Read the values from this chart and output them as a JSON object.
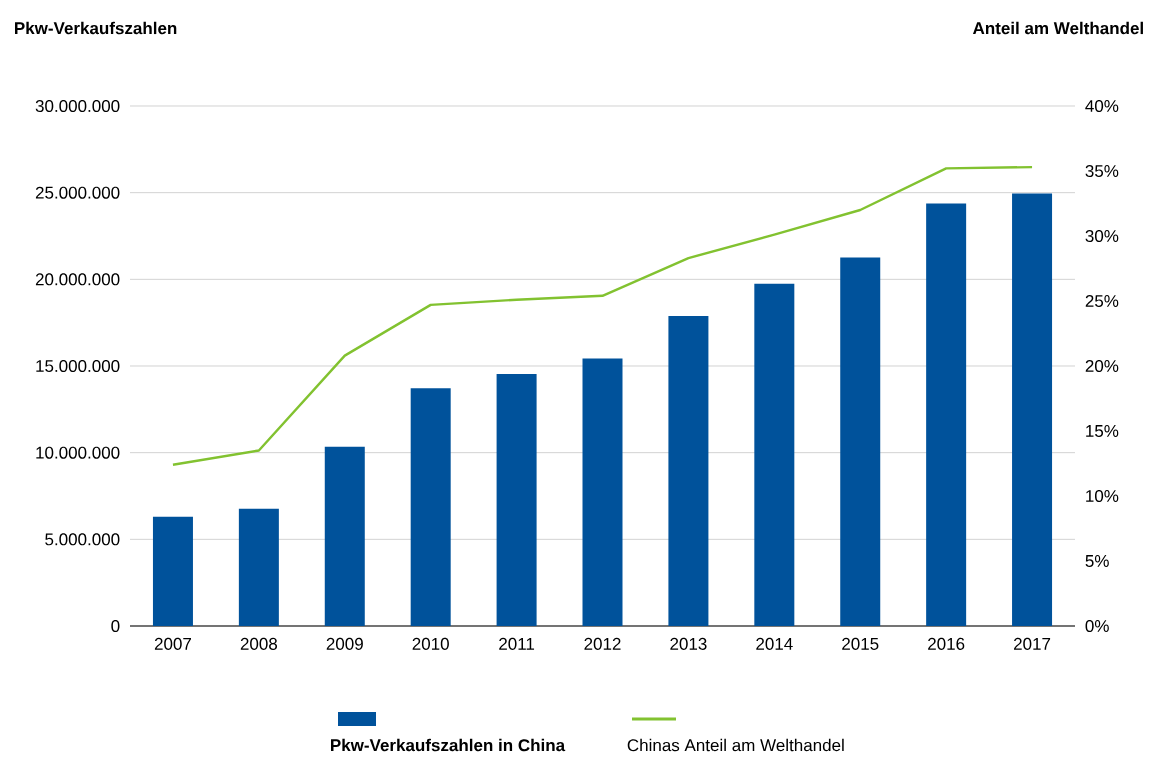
{
  "chart_data": {
    "type": "bar",
    "ylabel": "Pkw-Verkaufszahlen",
    "y2label": "Anteil am Welthandel",
    "categories": [
      "2007",
      "2008",
      "2009",
      "2010",
      "2011",
      "2012",
      "2013",
      "2014",
      "2015",
      "2016",
      "2017"
    ],
    "series": [
      {
        "name": "Pkw-Verkaufszahlen in China",
        "color": "#00529b",
        "values": [
          6300000,
          6760000,
          10340000,
          13720000,
          14540000,
          15430000,
          17880000,
          19740000,
          21260000,
          24370000,
          24950000
        ]
      },
      {
        "name": "Chinas Anteil am Welthandel",
        "type": "line",
        "axis": "y2",
        "color": "#82c230",
        "values": [
          12.4,
          13.5,
          20.8,
          24.7,
          25.1,
          25.4,
          28.3,
          30.1,
          32.0,
          35.2,
          35.3
        ]
      }
    ],
    "ylim": [
      0,
      30000000
    ],
    "yticks": [
      {
        "value": 0,
        "label": "0"
      },
      {
        "value": 5000000,
        "label": "5.000.000"
      },
      {
        "value": 10000000,
        "label": "10.000.000"
      },
      {
        "value": 15000000,
        "label": "15.000.000"
      },
      {
        "value": 20000000,
        "label": "20.000.000"
      },
      {
        "value": 25000000,
        "label": "25.000.000"
      },
      {
        "value": 30000000,
        "label": "30.000.000"
      }
    ],
    "y2lim": [
      0,
      40
    ],
    "y2ticks": [
      {
        "value": 0,
        "label": "0%"
      },
      {
        "value": 5,
        "label": "5%"
      },
      {
        "value": 10,
        "label": "10%"
      },
      {
        "value": 15,
        "label": "15%"
      },
      {
        "value": 20,
        "label": "20%"
      },
      {
        "value": 25,
        "label": "25%"
      },
      {
        "value": 30,
        "label": "30%"
      },
      {
        "value": 35,
        "label": "35%"
      },
      {
        "value": 40,
        "label": "40%"
      }
    ],
    "grid": "y",
    "legend": "bottom"
  }
}
